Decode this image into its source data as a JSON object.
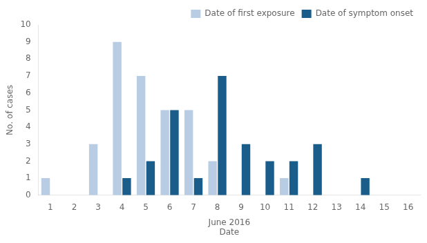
{
  "chart_data": {
    "type": "bar",
    "xlabel": "June 2016\nDate",
    "ylabel": "No. of cases",
    "x": [
      1,
      2,
      3,
      4,
      5,
      6,
      7,
      8,
      9,
      10,
      11,
      12,
      13,
      14,
      15,
      16
    ],
    "series": [
      {
        "name": "Date of first exposure",
        "color": "#b8cce4",
        "values": [
          1,
          0,
          3,
          9,
          7,
          5,
          5,
          2,
          0,
          0,
          1,
          0,
          0,
          0,
          0,
          0
        ]
      },
      {
        "name": "Date of symptom onset",
        "color": "#1a5c8a",
        "values": [
          0,
          0,
          0,
          1,
          2,
          5,
          1,
          7,
          3,
          2,
          2,
          3,
          0,
          1,
          0,
          0
        ]
      }
    ],
    "xlim": [
      0.5,
      16.5
    ],
    "xticks": [
      1,
      2,
      3,
      4,
      5,
      6,
      7,
      8,
      9,
      10,
      11,
      12,
      13,
      14,
      15,
      16
    ],
    "ylim": [
      0,
      10
    ],
    "yticks": [
      0,
      1,
      2,
      3,
      4,
      5,
      6,
      7,
      8,
      9,
      10
    ],
    "grid": false,
    "legend": "upper right"
  }
}
